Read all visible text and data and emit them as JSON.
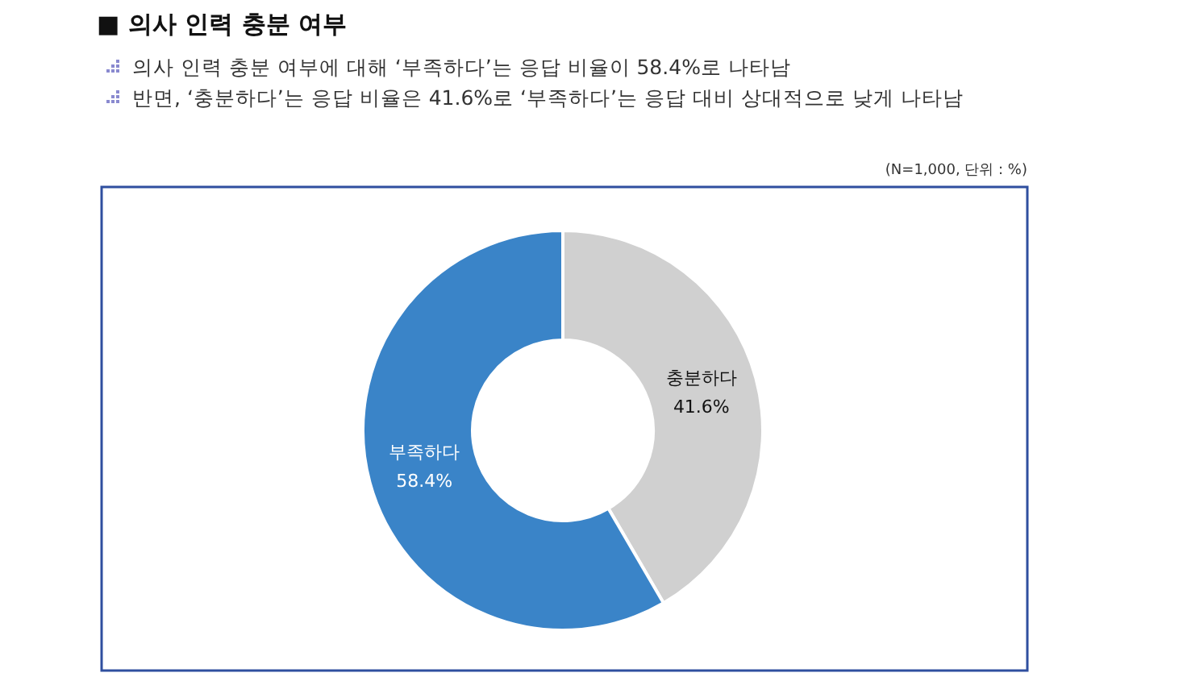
{
  "chart_data": {
    "type": "donut",
    "title": "■ 의사 인력 충분 여부",
    "subtitle": "의사 인력 충분 여부에 대해 ‘부족하다’는 응답 비율이 58.4%로 나타남",
    "annotations": [
      "반면, ‘충분하다’는 응답 비율은 41.6%로 ‘부족하다’는 응답 대비 상대적으로 낮게 나타남",
      "(N=1,000, 단위 : %)"
    ],
    "categories": [
      "충분하다",
      "부족하다"
    ],
    "values": [
      41.6,
      58.4
    ],
    "colors": [
      "#d0d0d0",
      "#3a84c8"
    ],
    "value_labels": [
      "41.6%",
      "58.4%"
    ]
  }
}
